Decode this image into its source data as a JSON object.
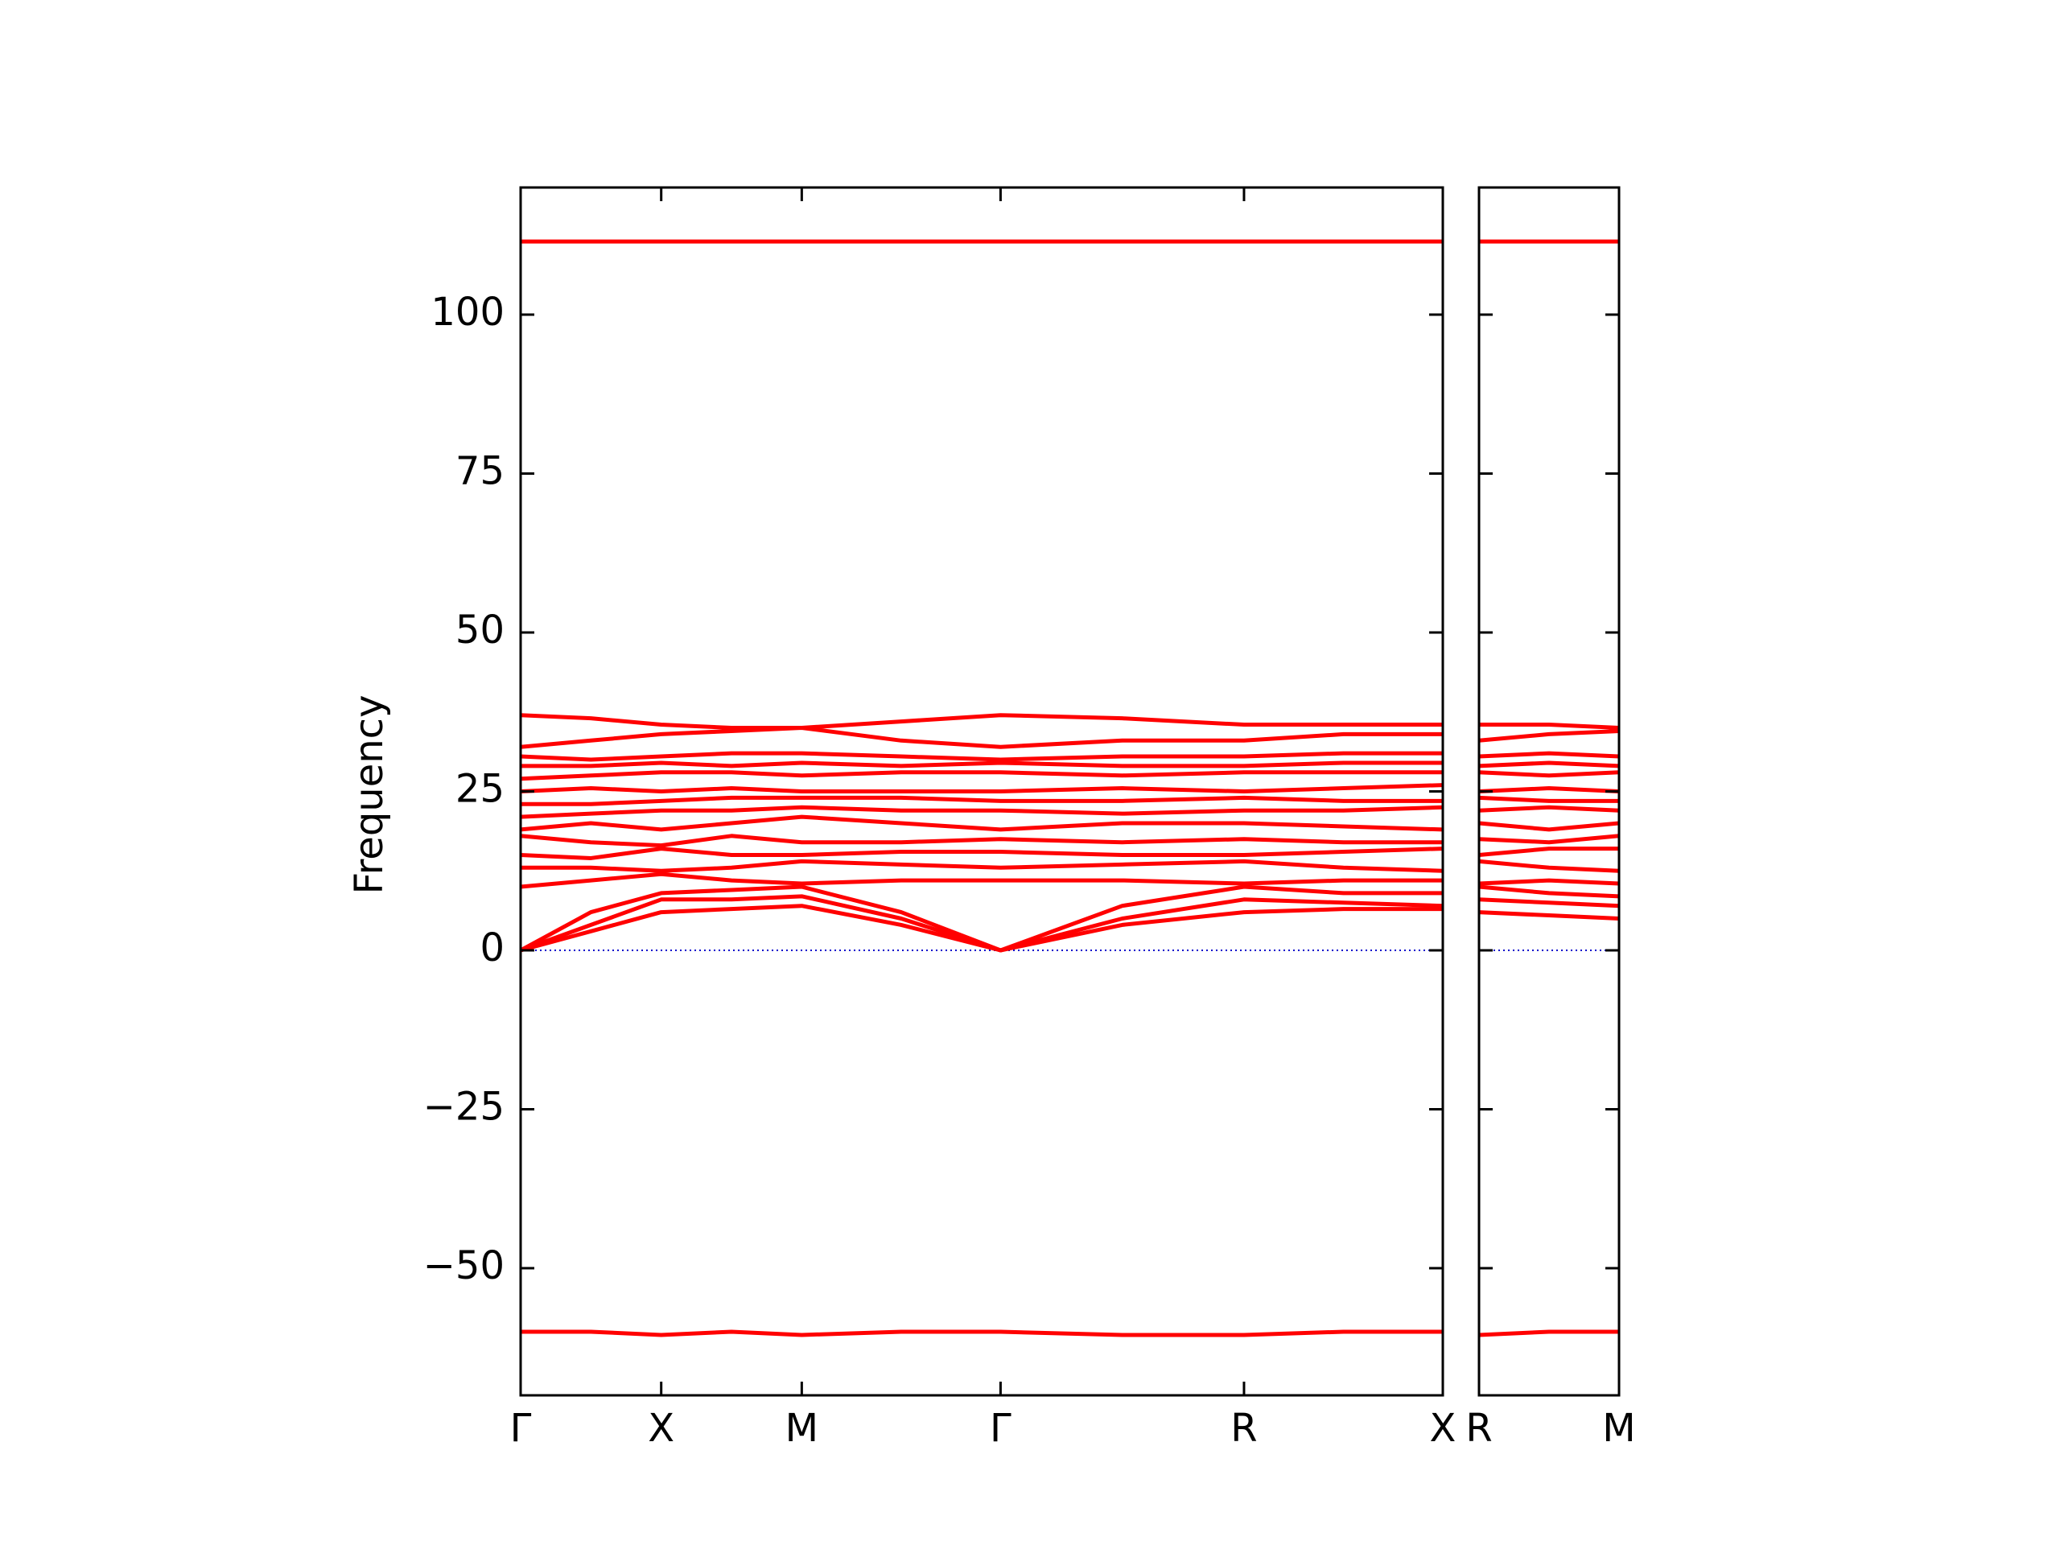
{
  "chart_data": [
    {
      "type": "line",
      "ylabel": "Frequency",
      "color": "#ff0000",
      "zero_line_color": "#0000cc",
      "x": [
        0,
        0.25,
        0.5,
        0.75,
        1.0,
        1.3536,
        1.7071,
        2.1401,
        2.5731,
        2.9267,
        3.2802
      ],
      "xlim": [
        0,
        3.2802
      ],
      "xticks": [
        {
          "value": 0,
          "label": "Γ"
        },
        {
          "value": 0.5,
          "label": "X"
        },
        {
          "value": 1.0,
          "label": "M"
        },
        {
          "value": 1.7071,
          "label": "Γ"
        },
        {
          "value": 2.5731,
          "label": "R"
        },
        {
          "value": 3.2802,
          "label": "X"
        }
      ],
      "ylim": [
        -70,
        120
      ],
      "yticks": [
        {
          "value": -50,
          "label": "−50"
        },
        {
          "value": -25,
          "label": "−25"
        },
        0,
        25,
        50,
        75,
        100
      ],
      "series": [
        {
          "values": [
            0,
            3,
            6,
            6.5,
            7,
            4,
            0,
            4,
            6,
            6.5,
            6.5
          ]
        },
        {
          "values": [
            0,
            4,
            8,
            8,
            8.5,
            5,
            0,
            5,
            8,
            7.5,
            7
          ]
        },
        {
          "values": [
            0,
            6,
            9,
            9.5,
            10,
            6,
            0,
            7,
            10,
            9,
            9
          ]
        },
        {
          "values": [
            10,
            11,
            12,
            11,
            10.5,
            11,
            11,
            11,
            10.5,
            11,
            11
          ]
        },
        {
          "values": [
            13,
            13,
            12.5,
            13,
            14,
            13.5,
            13,
            13.5,
            14,
            13,
            12.5
          ]
        },
        {
          "values": [
            15,
            14.5,
            16,
            15,
            15,
            15.5,
            15.5,
            15,
            15,
            15.5,
            16
          ]
        },
        {
          "values": [
            18,
            17,
            16.5,
            18,
            17,
            17,
            17.5,
            17,
            17.5,
            17,
            17
          ]
        },
        {
          "values": [
            19,
            20,
            19,
            20,
            21,
            20,
            19,
            20,
            20,
            19.5,
            19
          ]
        },
        {
          "values": [
            21,
            21.5,
            22,
            22,
            22.5,
            22,
            22,
            21.5,
            22,
            22,
            22.5
          ]
        },
        {
          "values": [
            23,
            23,
            23.5,
            24,
            24,
            24,
            23.5,
            23.5,
            24,
            23.5,
            23.5
          ]
        },
        {
          "values": [
            25,
            25.5,
            25,
            25.5,
            25,
            25,
            25,
            25.5,
            25,
            25.5,
            26
          ]
        },
        {
          "values": [
            27,
            27.5,
            28,
            28,
            27.5,
            28,
            28,
            27.5,
            28,
            28,
            28
          ]
        },
        {
          "values": [
            29,
            29,
            29.5,
            29,
            29.5,
            29,
            29.5,
            29,
            29,
            29.5,
            29.5
          ]
        },
        {
          "values": [
            30.5,
            30,
            30.5,
            31,
            31,
            30.5,
            30,
            30.5,
            30.5,
            31,
            31
          ]
        },
        {
          "values": [
            32,
            33,
            34,
            34.5,
            35,
            33,
            32,
            33,
            33,
            34,
            34
          ]
        },
        {
          "values": [
            37,
            36.5,
            35.5,
            35,
            35,
            36,
            37,
            36.5,
            35.5,
            35.5,
            35.5
          ]
        },
        {
          "values": [
            111.5,
            111.5,
            111.5,
            111.5,
            111.5,
            111.5,
            111.5,
            111.5,
            111.5,
            111.5,
            111.5
          ]
        },
        {
          "values": [
            -60,
            -60,
            -60.5,
            -60,
            -60.5,
            -60,
            -60,
            -60.5,
            -60.5,
            -60,
            -60
          ]
        }
      ]
    },
    {
      "type": "line",
      "color": "#ff0000",
      "zero_line_color": "#0000cc",
      "x": [
        0,
        0.25,
        0.5
      ],
      "xlim": [
        0,
        0.5
      ],
      "xticks": [
        {
          "value": 0,
          "label": "R"
        },
        {
          "value": 0.5,
          "label": "M"
        }
      ],
      "ylim": [
        -70,
        120
      ],
      "yticks": [
        {
          "value": -50,
          "label": "−50"
        },
        {
          "value": -25,
          "label": "−25"
        },
        0,
        25,
        50,
        75,
        100
      ],
      "series": [
        {
          "values": [
            6,
            5.5,
            5
          ]
        },
        {
          "values": [
            8,
            7.5,
            7
          ]
        },
        {
          "values": [
            10,
            9,
            8.5
          ]
        },
        {
          "values": [
            10.5,
            11,
            10.5
          ]
        },
        {
          "values": [
            14,
            13,
            12.5
          ]
        },
        {
          "values": [
            15,
            16,
            16
          ]
        },
        {
          "values": [
            17.5,
            17,
            18
          ]
        },
        {
          "values": [
            20,
            19,
            20
          ]
        },
        {
          "values": [
            22,
            22.5,
            22
          ]
        },
        {
          "values": [
            24,
            23.5,
            23.5
          ]
        },
        {
          "values": [
            25,
            25.5,
            25
          ]
        },
        {
          "values": [
            28,
            27.5,
            28
          ]
        },
        {
          "values": [
            29,
            29.5,
            29
          ]
        },
        {
          "values": [
            30.5,
            31,
            30.5
          ]
        },
        {
          "values": [
            33,
            34,
            34.5
          ]
        },
        {
          "values": [
            35.5,
            35.5,
            35
          ]
        },
        {
          "values": [
            111.5,
            111.5,
            111.5
          ]
        },
        {
          "values": [
            -60.5,
            -60,
            -60
          ]
        }
      ]
    }
  ]
}
